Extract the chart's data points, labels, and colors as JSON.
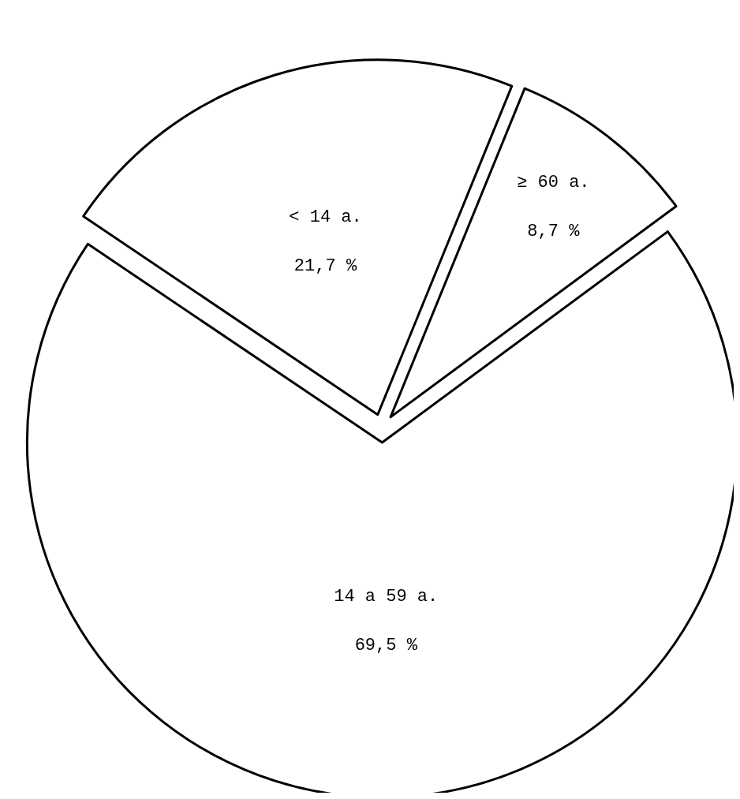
{
  "chart_data": {
    "type": "pie",
    "categories": [
      "< 14 a.",
      "≥ 60 a.",
      "14 a 59 a."
    ],
    "values": [
      21.7,
      8.7,
      69.5
    ],
    "value_labels": [
      "21,7 %",
      "8,7 %",
      "69,5 %"
    ],
    "colors": [
      "#ffffff",
      "#ffffff",
      "#ffffff"
    ],
    "legend": false
  }
}
